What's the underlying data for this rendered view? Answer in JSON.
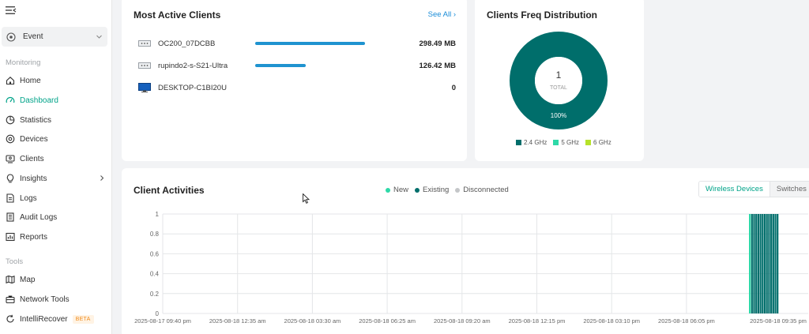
{
  "sidebar": {
    "site": "Event",
    "sections": {
      "monitoring": "Monitoring",
      "tools": "Tools"
    },
    "monitoring_items": [
      {
        "label": "Home",
        "icon": "home-icon"
      },
      {
        "label": "Dashboard",
        "icon": "dashboard-icon",
        "active": true
      },
      {
        "label": "Statistics",
        "icon": "pie-chart-icon"
      },
      {
        "label": "Devices",
        "icon": "devices-icon"
      },
      {
        "label": "Clients",
        "icon": "clients-icon"
      },
      {
        "label": "Insights",
        "icon": "lightbulb-icon",
        "has_submenu": true
      },
      {
        "label": "Logs",
        "icon": "logs-icon"
      },
      {
        "label": "Audit Logs",
        "icon": "audit-logs-icon"
      },
      {
        "label": "Reports",
        "icon": "reports-icon"
      }
    ],
    "tools_items": [
      {
        "label": "Map",
        "icon": "map-icon"
      },
      {
        "label": "Network Tools",
        "icon": "toolbox-icon"
      },
      {
        "label": "IntelliRecover",
        "icon": "recover-icon",
        "badge": "BETA"
      }
    ]
  },
  "most_active": {
    "title": "Most Active Clients",
    "see_all": "See All",
    "clients": [
      {
        "name": "OC200_07DCBB",
        "usage": "298.49 MB",
        "share": 0.91,
        "icon": "network-device-icon"
      },
      {
        "name": "rupindo2-s-S21-Ultra",
        "usage": "126.42 MB",
        "share": 0.42,
        "icon": "network-device-icon"
      },
      {
        "name": "DESKTOP-C1BI20U",
        "usage": "0",
        "share": 0,
        "icon": "monitor-icon"
      }
    ]
  },
  "freq": {
    "title": "Clients Freq Distribution",
    "total_value": "1",
    "total_label": "TOTAL",
    "percent_label": "100%",
    "legend": [
      {
        "label": "2.4 GHz",
        "color": "#006e6b"
      },
      {
        "label": "5 GHz",
        "color": "#2ed9a8"
      },
      {
        "label": "6 GHz",
        "color": "#b6e22a"
      }
    ]
  },
  "activities": {
    "title": "Client Activities",
    "legend": [
      {
        "label": "New",
        "color": "#2ed9a8"
      },
      {
        "label": "Existing",
        "color": "#006e6b"
      },
      {
        "label": "Disconnected",
        "color": "#c4c6c8"
      }
    ],
    "tabs": [
      "Wireless Devices",
      "Switches"
    ],
    "active_tab": 0
  },
  "chart_data": {
    "type": "bar",
    "title": "Client Activities",
    "ylim": [
      0,
      1
    ],
    "y_ticks": [
      "0",
      "0.2",
      "0.4",
      "0.6",
      "0.8",
      "1"
    ],
    "x_ticks": [
      "2025-08-17 09:40 pm",
      "2025-08-18 12:35 am",
      "2025-08-18 03:30 am",
      "2025-08-18 06:25 am",
      "2025-08-18 09:20 am",
      "2025-08-18 12:15 pm",
      "2025-08-18 03:10 pm",
      "2025-08-18 06:05 pm",
      "2025-08-18 09:35 pm"
    ],
    "grid": true,
    "series": [
      {
        "name": "New",
        "color": "#2ed9a8",
        "values": [
          1,
          0,
          0,
          0,
          0,
          0,
          0,
          0,
          0,
          0,
          0,
          0,
          0,
          0
        ]
      },
      {
        "name": "Existing",
        "color": "#006e6b",
        "values": [
          0,
          1,
          1,
          1,
          1,
          1,
          1,
          1,
          1,
          1,
          1,
          1,
          1,
          1
        ]
      },
      {
        "name": "Disconnected",
        "color": "#c4c6c8",
        "values": [
          0,
          0,
          0,
          0,
          0,
          0,
          0,
          0,
          0,
          0,
          0,
          0,
          0,
          0
        ]
      }
    ]
  }
}
